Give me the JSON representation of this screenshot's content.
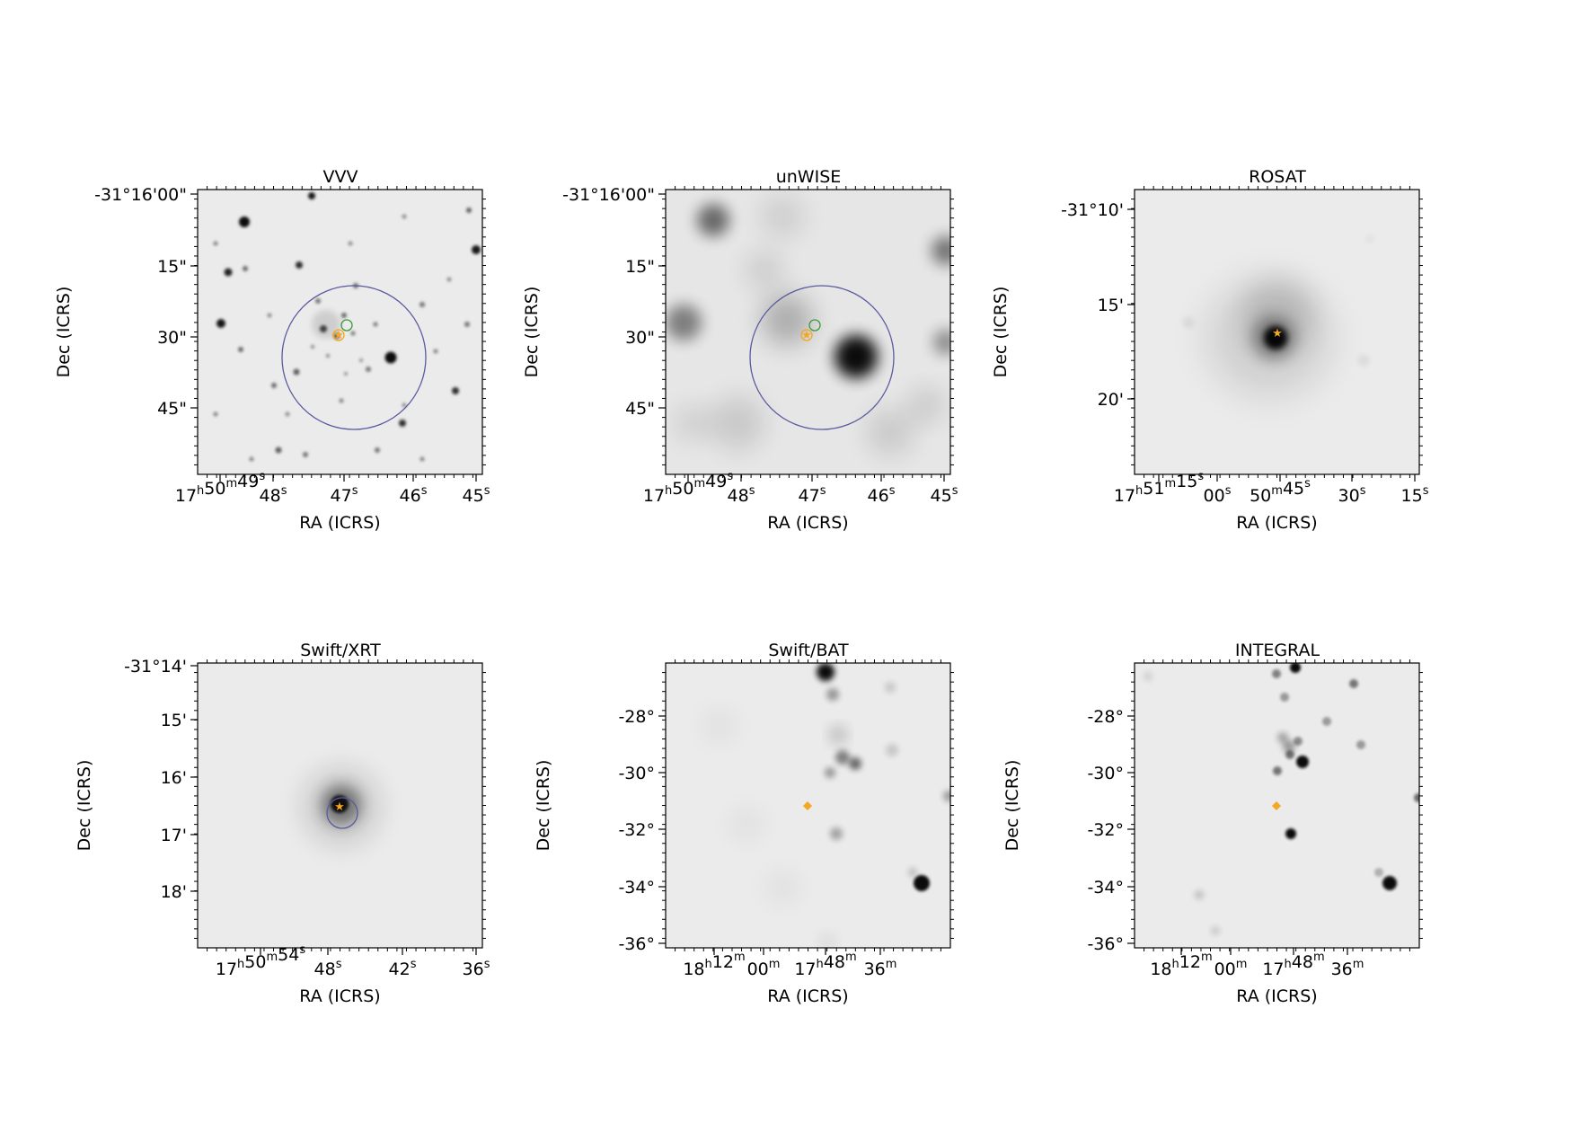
{
  "panels": [
    {
      "title": "VVV",
      "xlabel": "RA (ICRS)",
      "ylabel": "Dec (ICRS)",
      "xticks": [
        {
          "h": "17",
          "hu": "h",
          "m": "50",
          "mu": "m",
          "s": "49",
          "su": "s"
        },
        {
          "s": "48",
          "su": "s"
        },
        {
          "s": "47",
          "su": "s"
        },
        {
          "s": "46",
          "su": "s"
        },
        {
          "s": "45",
          "su": "s"
        }
      ],
      "yticks": [
        "-31°16'00\"",
        "15\"",
        "30\"",
        "45\""
      ],
      "markers": [
        "large-circle",
        "orange-star",
        "orange-circle",
        "green-circle"
      ]
    },
    {
      "title": "unWISE",
      "xlabel": "RA (ICRS)",
      "ylabel": "Dec (ICRS)",
      "xticks": [
        {
          "h": "17",
          "hu": "h",
          "m": "50",
          "mu": "m",
          "s": "49",
          "su": "s"
        },
        {
          "s": "48",
          "su": "s"
        },
        {
          "s": "47",
          "su": "s"
        },
        {
          "s": "46",
          "su": "s"
        },
        {
          "s": "45",
          "su": "s"
        }
      ],
      "yticks": [
        "-31°16'00\"",
        "15\"",
        "30\"",
        "45\""
      ],
      "markers": [
        "large-circle",
        "orange-star",
        "orange-circle",
        "green-circle"
      ]
    },
    {
      "title": "ROSAT",
      "xlabel": "RA (ICRS)",
      "ylabel": "Dec (ICRS)",
      "xticks": [
        {
          "h": "17",
          "hu": "h",
          "m": "51",
          "mu": "m",
          "s": "15",
          "su": "s"
        },
        {
          "s": "00",
          "su": "s"
        },
        {
          "m": "50",
          "mu": "m",
          "s": "45",
          "su": "s"
        },
        {
          "s": "30",
          "su": "s"
        },
        {
          "s": "15",
          "su": "s"
        }
      ],
      "yticks": [
        "-31°10'",
        "15'",
        "20'"
      ],
      "markers": [
        "orange-star"
      ]
    },
    {
      "title": "Swift/XRT",
      "xlabel": "RA (ICRS)",
      "ylabel": "Dec (ICRS)",
      "xticks": [
        {
          "h": "17",
          "hu": "h",
          "m": "50",
          "mu": "m",
          "s": "54",
          "su": "s"
        },
        {
          "s": "48",
          "su": "s"
        },
        {
          "s": "42",
          "su": "s"
        },
        {
          "s": "36",
          "su": "s"
        }
      ],
      "yticks": [
        "-31°14'",
        "15'",
        "16'",
        "17'",
        "18'"
      ],
      "markers": [
        "small-circle",
        "orange-star"
      ]
    },
    {
      "title": "Swift/BAT",
      "xlabel": "RA (ICRS)",
      "ylabel": "Dec (ICRS)",
      "xticks": [
        {
          "h": "18",
          "hu": "h",
          "m": "12",
          "mu": "m"
        },
        {
          "m": "00",
          "mu": "m"
        },
        {
          "h": "17",
          "hu": "h",
          "m": "48",
          "mu": "m"
        },
        {
          "m": "36",
          "mu": "m"
        }
      ],
      "yticks": [
        "-28°",
        "-30°",
        "-32°",
        "-34°",
        "-36°"
      ],
      "markers": [
        "orange-diamond"
      ]
    },
    {
      "title": "INTEGRAL",
      "xlabel": "RA (ICRS)",
      "ylabel": "Dec (ICRS)",
      "xticks": [
        {
          "h": "18",
          "hu": "h",
          "m": "12",
          "mu": "m"
        },
        {
          "m": "00",
          "mu": "m"
        },
        {
          "h": "17",
          "hu": "h",
          "m": "48",
          "mu": "m"
        },
        {
          "m": "36",
          "mu": "m"
        }
      ],
      "yticks": [
        "-28°",
        "-30°",
        "-32°",
        "-34°",
        "-36°"
      ],
      "markers": [
        "orange-diamond"
      ]
    }
  ],
  "colors": {
    "background": "#ffffff",
    "image_bg": "#ebebeb",
    "error_circle": "#5a5aa0",
    "marker_orange": "#f5a623",
    "marker_green": "#3a9a3a"
  }
}
